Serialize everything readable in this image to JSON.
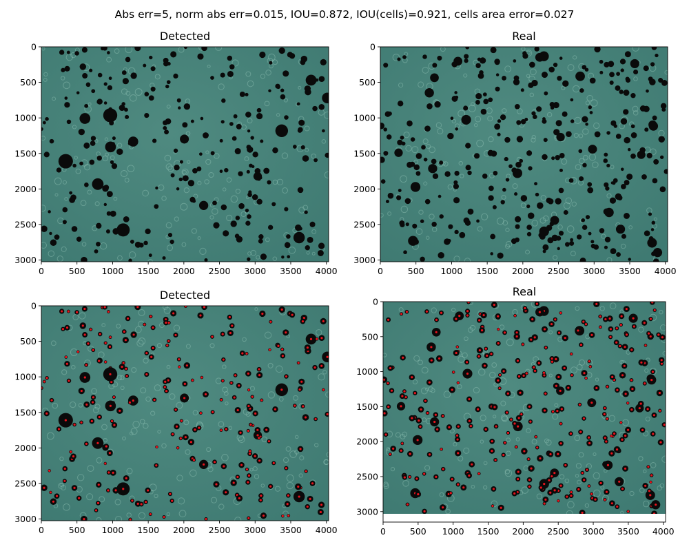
{
  "figure": {
    "title": "Abs err=5, norm abs err=0.015, IOU=0.872, IOU(cells)=0.921, cells area error=0.027"
  },
  "colors": {
    "background": "#3f7a72",
    "cell": "#0a0a0a",
    "center_marker": "#e8141c",
    "axis": "#000000"
  },
  "chart_data": [
    {
      "type": "image",
      "title": "Detected",
      "xlim": [
        0,
        4032
      ],
      "ylim": [
        3024,
        0
      ],
      "xticks": [
        0,
        500,
        1000,
        1500,
        2000,
        2500,
        3000,
        3500,
        4000
      ],
      "yticks": [
        0,
        500,
        1000,
        1500,
        2000,
        2500,
        3000
      ],
      "markers": false
    },
    {
      "type": "image",
      "title": "Real",
      "xlim": [
        0,
        4032
      ],
      "ylim": [
        3024,
        0
      ],
      "xticks": [
        0,
        500,
        1000,
        1500,
        2000,
        2500,
        3000,
        3500,
        4000
      ],
      "yticks": [
        0,
        500,
        1000,
        1500,
        2000,
        2500,
        3000
      ],
      "markers": false
    },
    {
      "type": "image",
      "title": "Detected",
      "xlim": [
        0,
        4032
      ],
      "ylim": [
        3024,
        0
      ],
      "xticks": [
        0,
        500,
        1000,
        1500,
        2000,
        2500,
        3000,
        3500,
        4000
      ],
      "yticks": [
        0,
        500,
        1000,
        1500,
        2000,
        2500,
        3000
      ],
      "markers": true
    },
    {
      "type": "image",
      "title": "Real",
      "xlim": [
        0,
        4032
      ],
      "ylim": [
        3150,
        0
      ],
      "xticks": [
        0,
        500,
        1000,
        1500,
        2000,
        2500,
        3000,
        3500,
        4000
      ],
      "yticks": [
        0,
        500,
        1000,
        1500,
        2000,
        2500,
        3000
      ],
      "markers": true
    }
  ]
}
